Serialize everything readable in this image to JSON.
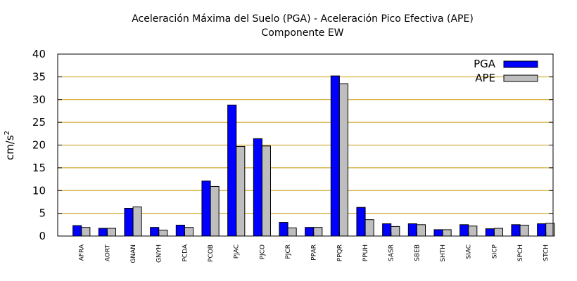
{
  "chart_data": {
    "type": "bar",
    "title": "Aceleración Máxima del Suelo (PGA) -  Aceleración Pico Efectiva (APE)",
    "subtitle": "Componente EW",
    "xlabel": "",
    "ylabel": "cm/s",
    "ylabel_superscript": "2",
    "ylim": [
      0,
      40
    ],
    "yticks": [
      0,
      5,
      10,
      15,
      20,
      25,
      30,
      35,
      40
    ],
    "grid": true,
    "legend_position": "top-right",
    "categories": [
      "AFRA",
      "AORT",
      "GNAN",
      "GNYH",
      "PCDA",
      "PCOB",
      "PJAC",
      "PJCO",
      "PJCR",
      "PPAR",
      "PPQR",
      "PPUH",
      "SASR",
      "SBEB",
      "SHTH",
      "SIAC",
      "SICP",
      "SPCH",
      "STCH"
    ],
    "series": [
      {
        "name": "PGA",
        "color": "#0000ff",
        "values": [
          2.3,
          1.7,
          6.1,
          1.9,
          2.4,
          12.1,
          28.8,
          21.4,
          3.0,
          1.9,
          35.2,
          6.3,
          2.7,
          2.7,
          1.4,
          2.5,
          1.6,
          2.5,
          2.7
        ]
      },
      {
        "name": "APE",
        "color": "#bebebe",
        "values": [
          1.9,
          1.7,
          6.4,
          1.3,
          1.9,
          10.9,
          19.7,
          19.8,
          1.8,
          1.9,
          33.5,
          3.6,
          2.1,
          2.5,
          1.4,
          2.2,
          1.7,
          2.4,
          2.8
        ]
      }
    ],
    "gridline_color": "#c89600"
  }
}
